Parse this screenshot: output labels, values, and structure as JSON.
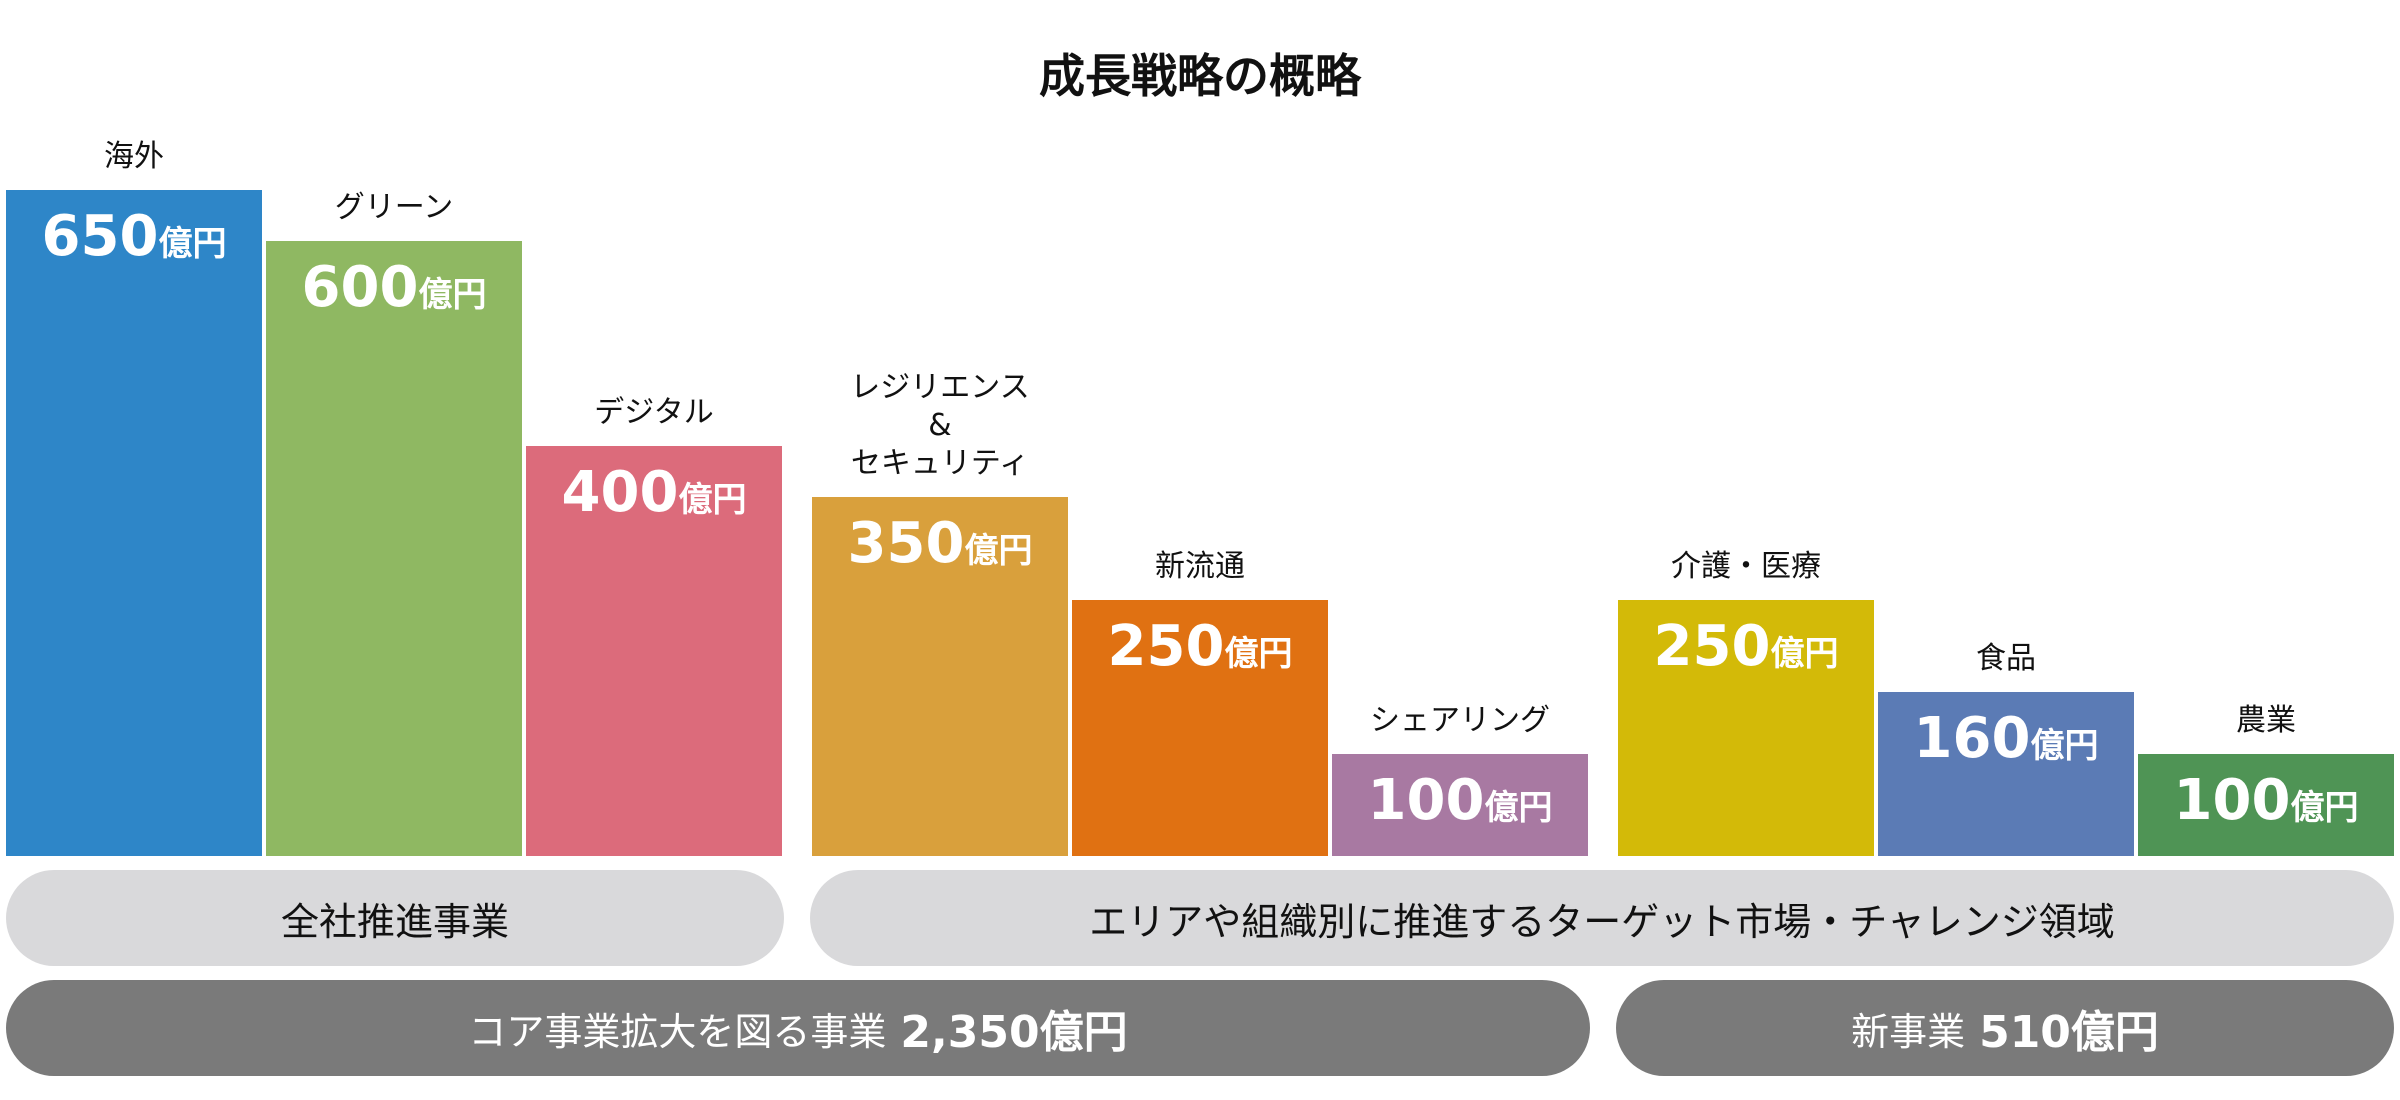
{
  "chart_data": {
    "type": "bar",
    "title": "成長戦略の概略",
    "unit": "億円",
    "categories": [
      "海外",
      "グリーン",
      "デジタル",
      "レジリエンス\n&\nセキュリティ",
      "新流通",
      "シェアリング",
      "介護・医療",
      "食品",
      "農業"
    ],
    "values": [
      650,
      600,
      400,
      350,
      250,
      100,
      250,
      160,
      100
    ],
    "value_labels": [
      "650",
      "600",
      "400",
      "350",
      "250",
      "100",
      "250",
      "160",
      "100"
    ],
    "colors": [
      "#2e86c8",
      "#8fb862",
      "#dc6b7b",
      "#d9a03c",
      "#e07112",
      "#a879a2",
      "#d3ba08",
      "#5b7bb5",
      "#4f9455"
    ],
    "ylim": [
      0,
      650
    ]
  },
  "groups": {
    "zensha": "全社推進事業",
    "area": "エリアや組織別に推進するターゲット市場・チャレンジ領域",
    "core_label": "コア事業拡大を図る事業",
    "core_value": "2,350億円",
    "new_label": "新事業",
    "new_value": "510億円"
  }
}
